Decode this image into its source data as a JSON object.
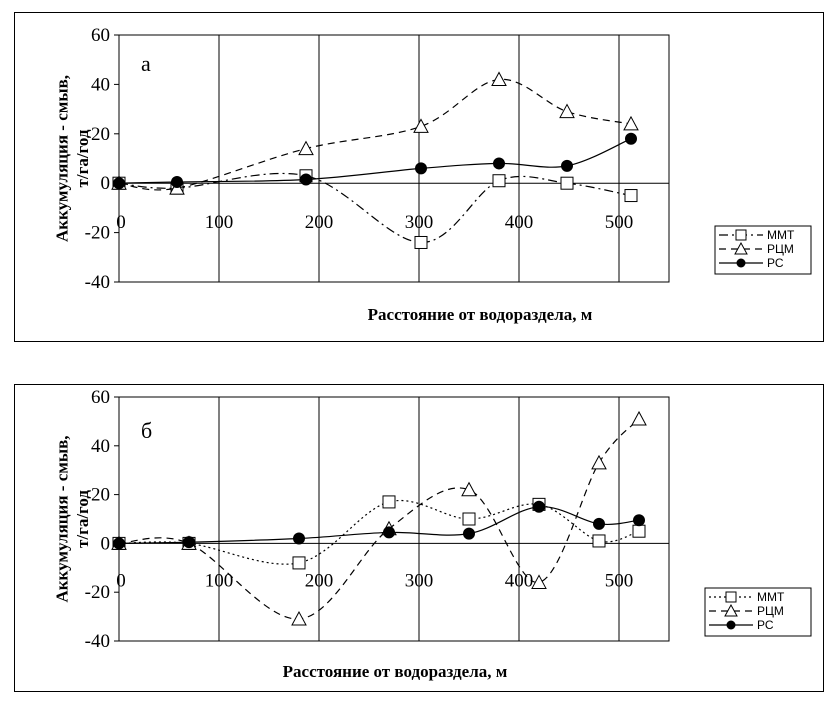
{
  "chart_data": [
    {
      "type": "line",
      "panel_label": "а",
      "ylabel": "Аккумуляция - смыв, т/га/год",
      "xlabel": "Расстояние от водораздела, м",
      "xlim": [
        0,
        550
      ],
      "ylim": [
        -40,
        60
      ],
      "x_ticks": [
        "0",
        "100",
        "200",
        "300",
        "400",
        "500"
      ],
      "y_ticks": [
        "60",
        "40",
        "20",
        "0",
        "-20",
        "-40"
      ],
      "grid": "vertical lines",
      "legend_position": "bottom-right",
      "series": [
        {
          "name": "ММТ",
          "marker": "square",
          "line_style": "dash-dot",
          "points": [
            [
              0,
              0
            ],
            [
              58,
              -2
            ],
            [
              187,
              3
            ],
            [
              302,
              -24
            ],
            [
              380,
              1
            ],
            [
              448,
              0
            ],
            [
              512,
              -5
            ]
          ]
        },
        {
          "name": "РЦМ",
          "marker": "triangle",
          "line_style": "dashed",
          "points": [
            [
              0,
              0
            ],
            [
              58,
              -2
            ],
            [
              187,
              14
            ],
            [
              302,
              23
            ],
            [
              380,
              42
            ],
            [
              448,
              29
            ],
            [
              512,
              24
            ]
          ]
        },
        {
          "name": "РС",
          "marker": "circle",
          "line_style": "solid",
          "points": [
            [
              0,
              0
            ],
            [
              58,
              0.5
            ],
            [
              187,
              1.5
            ],
            [
              302,
              6
            ],
            [
              380,
              8
            ],
            [
              448,
              7
            ],
            [
              512,
              18
            ]
          ]
        }
      ]
    },
    {
      "type": "line",
      "panel_label": "б",
      "ylabel": "Аккумуляция - смыв, т/га/год",
      "xlabel": "Расстояние от водораздела, м",
      "xlim": [
        0,
        550
      ],
      "ylim": [
        -40,
        60
      ],
      "x_ticks": [
        "0",
        "100",
        "200",
        "300",
        "400",
        "500"
      ],
      "y_ticks": [
        "60",
        "40",
        "20",
        "0",
        "-20",
        "-40"
      ],
      "grid": "vertical lines",
      "legend_position": "bottom-right",
      "series": [
        {
          "name": "ММТ",
          "marker": "square",
          "line_style": "dotted",
          "points": [
            [
              0,
              0
            ],
            [
              70,
              0
            ],
            [
              180,
              -8
            ],
            [
              270,
              17
            ],
            [
              350,
              10
            ],
            [
              420,
              16
            ],
            [
              480,
              1
            ],
            [
              520,
              5
            ]
          ]
        },
        {
          "name": "РЦМ",
          "marker": "triangle",
          "line_style": "dashed",
          "points": [
            [
              0,
              0
            ],
            [
              70,
              0
            ],
            [
              180,
              -31
            ],
            [
              270,
              6
            ],
            [
              350,
              22
            ],
            [
              420,
              -16
            ],
            [
              480,
              33
            ],
            [
              520,
              51
            ]
          ]
        },
        {
          "name": "РС",
          "marker": "circle",
          "line_style": "solid",
          "points": [
            [
              0,
              0
            ],
            [
              70,
              0.5
            ],
            [
              180,
              2
            ],
            [
              270,
              4.5
            ],
            [
              350,
              4
            ],
            [
              420,
              15
            ],
            [
              480,
              8
            ],
            [
              520,
              9.5
            ]
          ]
        }
      ]
    }
  ]
}
